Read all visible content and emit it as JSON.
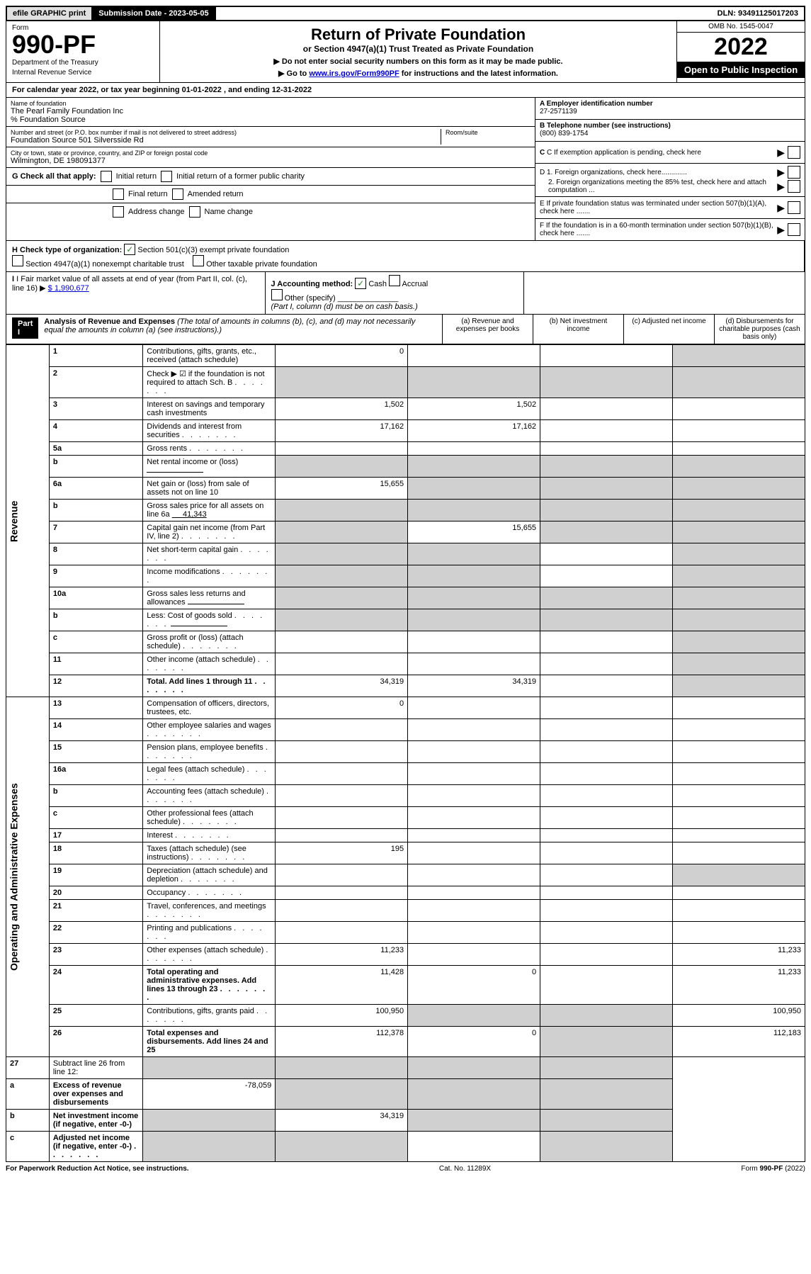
{
  "topbar": {
    "efile": "efile GRAPHIC print",
    "submission": "Submission Date - 2023-05-05",
    "dln": "DLN: 93491125017203"
  },
  "header": {
    "form_label": "Form",
    "form_number": "990-PF",
    "dept1": "Department of the Treasury",
    "dept2": "Internal Revenue Service",
    "title": "Return of Private Foundation",
    "subtitle": "or Section 4947(a)(1) Trust Treated as Private Foundation",
    "instr1": "▶ Do not enter social security numbers on this form as it may be made public.",
    "instr2_pre": "▶ Go to ",
    "instr2_link": "www.irs.gov/Form990PF",
    "instr2_post": " for instructions and the latest information.",
    "omb": "OMB No. 1545-0047",
    "year": "2022",
    "open": "Open to Public Inspection"
  },
  "cal_year": "For calendar year 2022, or tax year beginning 01-01-2022                    , and ending 12-31-2022",
  "info": {
    "name_label": "Name of foundation",
    "name1": "The Pearl Family Foundation Inc",
    "name2": "% Foundation Source",
    "addr_label": "Number and street (or P.O. box number if mail is not delivered to street address)",
    "addr": "Foundation Source 501 Silversside Rd",
    "room_label": "Room/suite",
    "city_label": "City or town, state or province, country, and ZIP or foreign postal code",
    "city": "Wilmington, DE  198091377",
    "a_label": "A Employer identification number",
    "a_val": "27-2571139",
    "b_label": "B Telephone number (see instructions)",
    "b_val": "(800) 839-1754",
    "c_label": "C If exemption application is pending, check here",
    "d1": "D 1. Foreign organizations, check here.............",
    "d2": "2. Foreign organizations meeting the 85% test, check here and attach computation ...",
    "e_label": "E If private foundation status was terminated under section 507(b)(1)(A), check here .......",
    "f_label": "F If the foundation is in a 60-month termination under section 507(b)(1)(B), check here .......",
    "g_label": "G Check all that apply:",
    "g_opts": [
      "Initial return",
      "Initial return of a former public charity",
      "Final return",
      "Amended return",
      "Address change",
      "Name change"
    ],
    "h_label": "H Check type of organization:",
    "h_opt1": "Section 501(c)(3) exempt private foundation",
    "h_opt2": "Section 4947(a)(1) nonexempt charitable trust",
    "h_opt3": "Other taxable private foundation",
    "i_label": "I Fair market value of all assets at end of year (from Part II, col. (c), line 16)",
    "i_val": "$  1,990,677",
    "j_label": "J Accounting method:",
    "j_cash": "Cash",
    "j_accrual": "Accrual",
    "j_other": "Other (specify)",
    "j_note": "(Part I, column (d) must be on cash basis.)"
  },
  "part1": {
    "badge": "Part I",
    "title": "Analysis of Revenue and Expenses",
    "title_note": "(The total of amounts in columns (b), (c), and (d) may not necessarily equal the amounts in column (a) (see instructions).)",
    "col_a": "(a)   Revenue and expenses per books",
    "col_b": "(b)   Net investment income",
    "col_c": "(c)   Adjusted net income",
    "col_d": "(d)   Disbursements for charitable purposes (cash basis only)"
  },
  "revenue_label": "Revenue",
  "expenses_label": "Operating and Administrative Expenses",
  "rows": [
    {
      "n": "1",
      "desc": "Contributions, gifts, grants, etc., received (attach schedule)",
      "a": "0",
      "d_shade": true
    },
    {
      "n": "2",
      "desc": "Check ▶ ☑ if the foundation is not required to attach Sch. B",
      "dots": true,
      "all_shade": true
    },
    {
      "n": "3",
      "desc": "Interest on savings and temporary cash investments",
      "a": "1,502",
      "b": "1,502"
    },
    {
      "n": "4",
      "desc": "Dividends and interest from securities",
      "dots": true,
      "a": "17,162",
      "b": "17,162"
    },
    {
      "n": "5a",
      "desc": "Gross rents",
      "dots": true
    },
    {
      "n": "b",
      "desc": "Net rental income or (loss)",
      "inline_blank": true,
      "all_shade": true
    },
    {
      "n": "6a",
      "desc": "Net gain or (loss) from sale of assets not on line 10",
      "a": "15,655",
      "bcd_shade": true
    },
    {
      "n": "b",
      "desc": "Gross sales price for all assets on line 6a",
      "inline_val": "41,343",
      "all_shade": true
    },
    {
      "n": "7",
      "desc": "Capital gain net income (from Part IV, line 2)",
      "dots": true,
      "a_shade": true,
      "b": "15,655",
      "cd_shade": true
    },
    {
      "n": "8",
      "desc": "Net short-term capital gain",
      "dots": true,
      "ab_shade": true,
      "d_shade": true
    },
    {
      "n": "9",
      "desc": "Income modifications",
      "dots": true,
      "ab_shade": true,
      "d_shade": true
    },
    {
      "n": "10a",
      "desc": "Gross sales less returns and allowances",
      "inline_blank": true,
      "all_shade": true
    },
    {
      "n": "b",
      "desc": "Less: Cost of goods sold",
      "dots": true,
      "inline_blank": true,
      "all_shade": true
    },
    {
      "n": "c",
      "desc": "Gross profit or (loss) (attach schedule)",
      "dots": true,
      "d_shade": true
    },
    {
      "n": "11",
      "desc": "Other income (attach schedule)",
      "dots": true,
      "d_shade": true
    },
    {
      "n": "12",
      "desc": "Total. Add lines 1 through 11",
      "dots": true,
      "bold": true,
      "a": "34,319",
      "b": "34,319",
      "d_shade": true
    }
  ],
  "exp_rows": [
    {
      "n": "13",
      "desc": "Compensation of officers, directors, trustees, etc.",
      "a": "0"
    },
    {
      "n": "14",
      "desc": "Other employee salaries and wages",
      "dots": true
    },
    {
      "n": "15",
      "desc": "Pension plans, employee benefits",
      "dots": true
    },
    {
      "n": "16a",
      "desc": "Legal fees (attach schedule)",
      "dots": true
    },
    {
      "n": "b",
      "desc": "Accounting fees (attach schedule)",
      "dots": true
    },
    {
      "n": "c",
      "desc": "Other professional fees (attach schedule)",
      "dots": true
    },
    {
      "n": "17",
      "desc": "Interest",
      "dots": true
    },
    {
      "n": "18",
      "desc": "Taxes (attach schedule) (see instructions)",
      "dots": true,
      "a": "195"
    },
    {
      "n": "19",
      "desc": "Depreciation (attach schedule) and depletion",
      "dots": true,
      "d_shade": true
    },
    {
      "n": "20",
      "desc": "Occupancy",
      "dots": true
    },
    {
      "n": "21",
      "desc": "Travel, conferences, and meetings",
      "dots": true
    },
    {
      "n": "22",
      "desc": "Printing and publications",
      "dots": true
    },
    {
      "n": "23",
      "desc": "Other expenses (attach schedule)",
      "dots": true,
      "a": "11,233",
      "d": "11,233"
    },
    {
      "n": "24",
      "desc": "Total operating and administrative expenses. Add lines 13 through 23",
      "dots": true,
      "bold": true,
      "a": "11,428",
      "b": "0",
      "d": "11,233"
    },
    {
      "n": "25",
      "desc": "Contributions, gifts, grants paid",
      "dots": true,
      "a": "100,950",
      "bc_shade": true,
      "d": "100,950"
    },
    {
      "n": "26",
      "desc": "Total expenses and disbursements. Add lines 24 and 25",
      "bold": true,
      "a": "112,378",
      "b": "0",
      "c_shade": true,
      "d": "112,183"
    }
  ],
  "final_rows": [
    {
      "n": "27",
      "desc": "Subtract line 26 from line 12:",
      "all_shade": true
    },
    {
      "n": "a",
      "desc": "Excess of revenue over expenses and disbursements",
      "bold": true,
      "a": "-78,059",
      "bcd_shade": true
    },
    {
      "n": "b",
      "desc": "Net investment income (if negative, enter -0-)",
      "bold": true,
      "a_shade": true,
      "b": "34,319",
      "cd_shade": true
    },
    {
      "n": "c",
      "desc": "Adjusted net income (if negative, enter -0-)",
      "bold": true,
      "dots": true,
      "ab_shade": true,
      "d_shade": true
    }
  ],
  "footer": {
    "left": "For Paperwork Reduction Act Notice, see instructions.",
    "mid": "Cat. No. 11289X",
    "right": "Form 990-PF (2022)"
  }
}
